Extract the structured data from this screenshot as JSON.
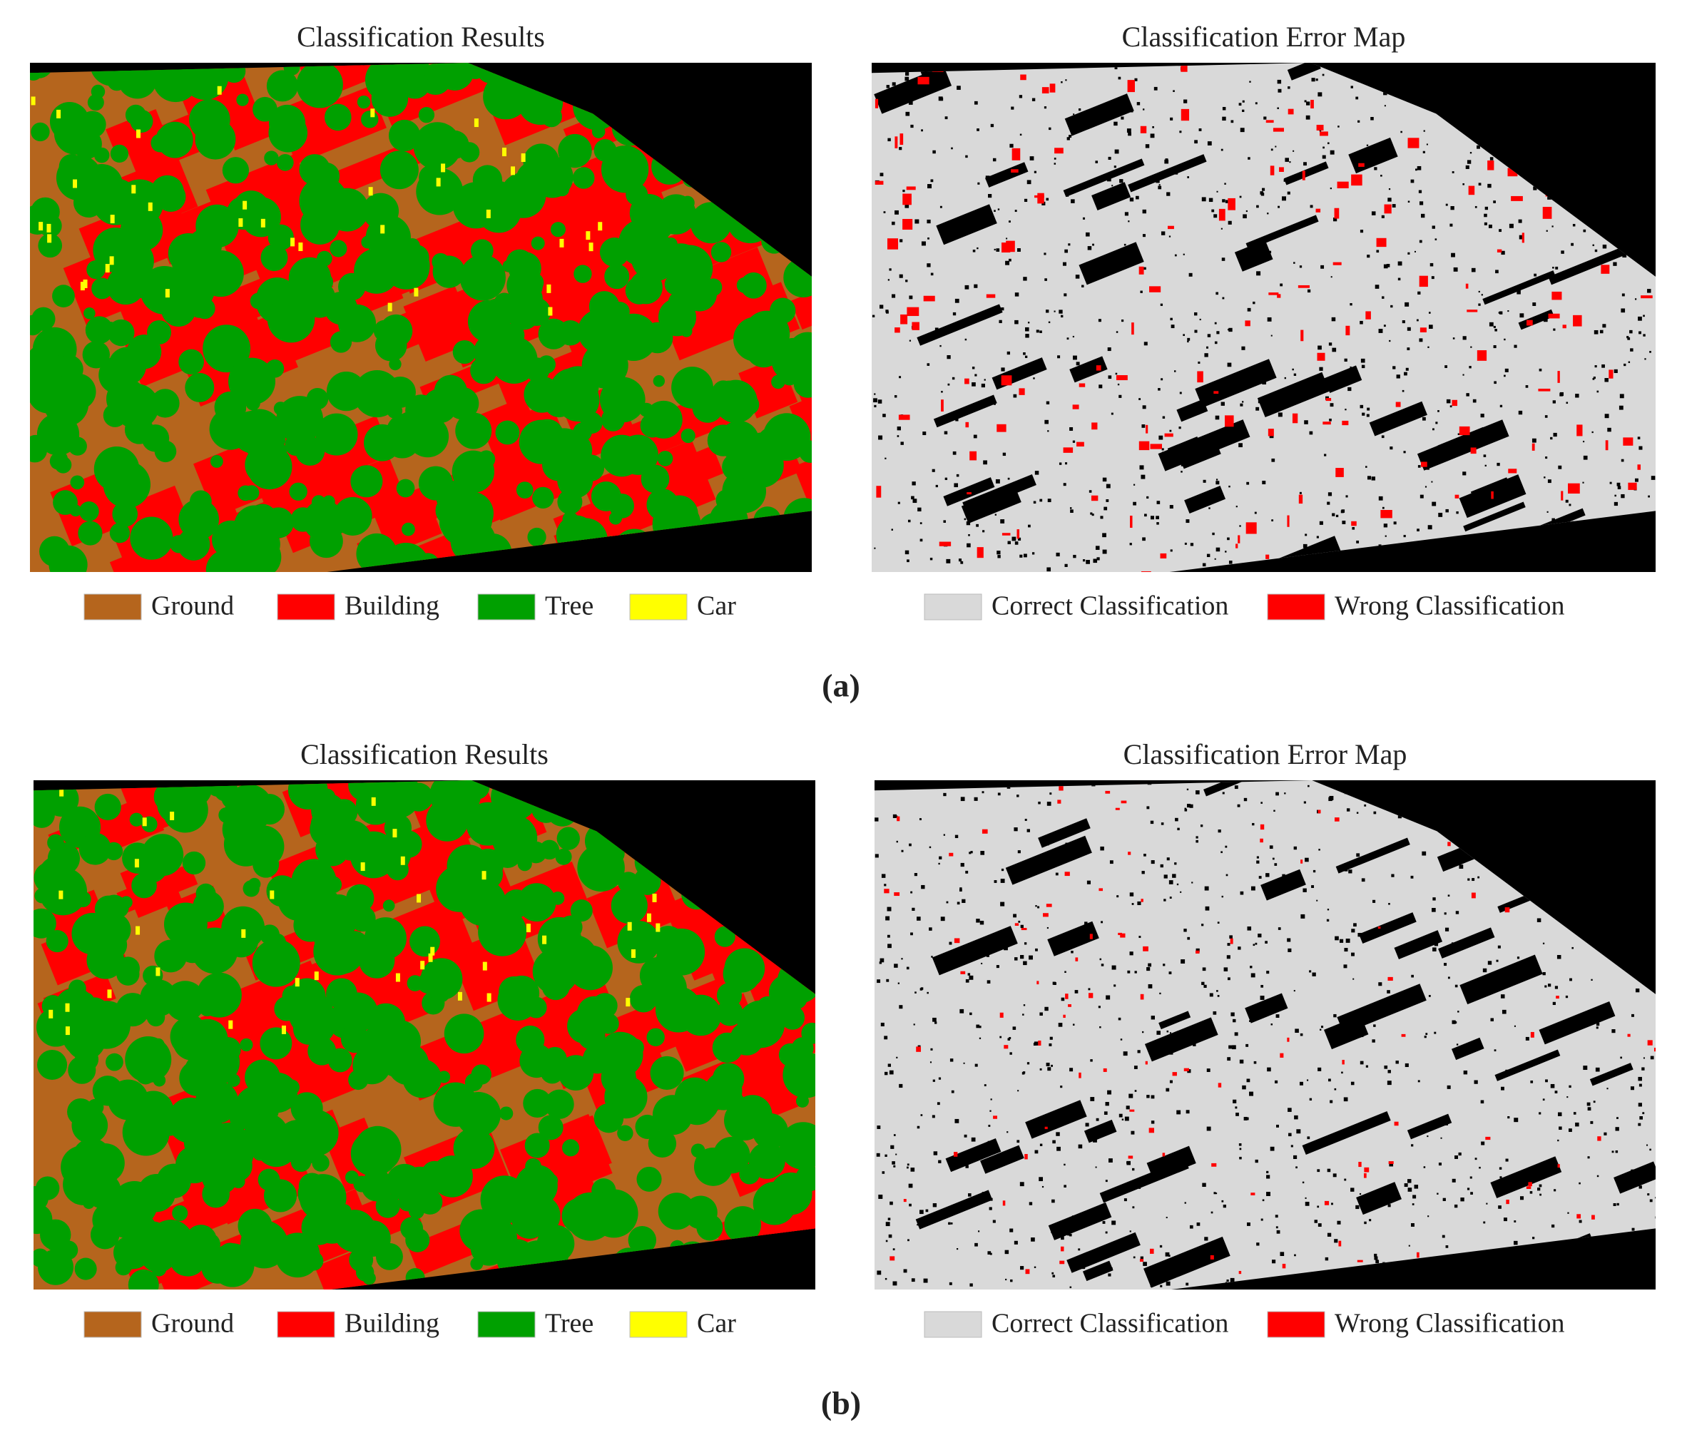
{
  "panels": [
    {
      "label": "(a)",
      "results": {
        "title": "Classification Results",
        "legend": [
          {
            "name": "Ground",
            "color": "#b5651d"
          },
          {
            "name": "Building",
            "color": "#ff0000"
          },
          {
            "name": "Tree",
            "color": "#00a000"
          },
          {
            "name": "Car",
            "color": "#ffff00"
          }
        ]
      },
      "error_map": {
        "title": "Classification Error Map",
        "legend": [
          {
            "name": "Correct Classification",
            "color": "#d9d9d9"
          },
          {
            "name": "Wrong Classification",
            "color": "#ff0000"
          }
        ]
      }
    },
    {
      "label": "(b)",
      "results": {
        "title": "Classification Results",
        "legend": [
          {
            "name": "Ground",
            "color": "#b5651d"
          },
          {
            "name": "Building",
            "color": "#ff0000"
          },
          {
            "name": "Tree",
            "color": "#00a000"
          },
          {
            "name": "Car",
            "color": "#ffff00"
          }
        ]
      },
      "error_map": {
        "title": "Classification Error Map",
        "legend": [
          {
            "name": "Correct Classification",
            "color": "#d9d9d9"
          },
          {
            "name": "Wrong Classification",
            "color": "#ff0000"
          }
        ]
      }
    }
  ]
}
